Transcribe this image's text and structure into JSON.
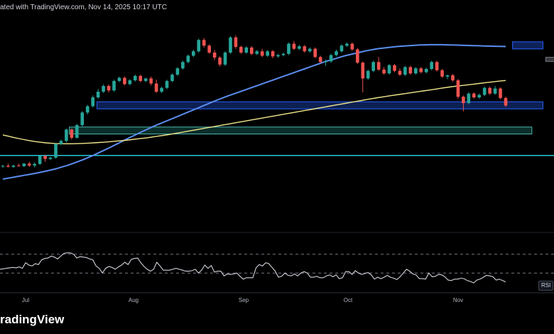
{
  "header": {
    "attribution": "ated with TradingView.com, Nov 14, 2025 10:17 UTC"
  },
  "footer": {
    "brand": "radingView"
  },
  "indicator": {
    "label": "RSI"
  },
  "colors": {
    "up": "#26a69a",
    "down": "#ef5350",
    "ma_fast": "#5b8def",
    "ma_slow": "#f0e68c",
    "rsi": "#d1d4dc",
    "support_line": "#26c6da"
  },
  "chart_data": {
    "type": "candlestick",
    "title": "",
    "xlabel": "",
    "ylabel": "",
    "x_ticks": [
      "Jul",
      "Aug",
      "Sep",
      "Oct",
      "Nov"
    ],
    "price_range": [
      0,
      100
    ],
    "candles": [
      {
        "o": 17,
        "h": 18,
        "l": 16,
        "c": 17.4
      },
      {
        "o": 17.4,
        "h": 18.8,
        "l": 16.4,
        "c": 16.8
      },
      {
        "o": 16.8,
        "h": 18,
        "l": 16,
        "c": 17.6
      },
      {
        "o": 17.6,
        "h": 18.8,
        "l": 17,
        "c": 17.2
      },
      {
        "o": 17.2,
        "h": 19.2,
        "l": 16.6,
        "c": 18.8
      },
      {
        "o": 18.8,
        "h": 20,
        "l": 16.8,
        "c": 17.6
      },
      {
        "o": 17.6,
        "h": 19.6,
        "l": 16.4,
        "c": 18.6
      },
      {
        "o": 18.6,
        "h": 24,
        "l": 18,
        "c": 23.6
      },
      {
        "o": 23.6,
        "h": 24.4,
        "l": 20,
        "c": 21.8
      },
      {
        "o": 21.8,
        "h": 23,
        "l": 21,
        "c": 22.6
      },
      {
        "o": 22.6,
        "h": 32,
        "l": 22,
        "c": 31.2
      },
      {
        "o": 31.2,
        "h": 34,
        "l": 30.4,
        "c": 33.2
      },
      {
        "o": 33.2,
        "h": 41,
        "l": 32.4,
        "c": 40.4
      },
      {
        "o": 40.4,
        "h": 41,
        "l": 34,
        "c": 35.2
      },
      {
        "o": 35.2,
        "h": 44,
        "l": 34.6,
        "c": 43.2
      },
      {
        "o": 43.2,
        "h": 52,
        "l": 42.4,
        "c": 51.2
      },
      {
        "o": 51.2,
        "h": 56,
        "l": 50,
        "c": 55.2
      },
      {
        "o": 55.2,
        "h": 62,
        "l": 54.4,
        "c": 60.8
      },
      {
        "o": 60.8,
        "h": 66,
        "l": 60,
        "c": 64.4
      },
      {
        "o": 64.4,
        "h": 69,
        "l": 63.6,
        "c": 68
      },
      {
        "o": 68,
        "h": 69,
        "l": 64,
        "c": 65.2
      },
      {
        "o": 65.2,
        "h": 72,
        "l": 64.4,
        "c": 71.2
      },
      {
        "o": 71.2,
        "h": 74,
        "l": 70.4,
        "c": 73.2
      },
      {
        "o": 73.2,
        "h": 74,
        "l": 68.4,
        "c": 69.2
      },
      {
        "o": 69.2,
        "h": 72.4,
        "l": 68.4,
        "c": 71.6
      },
      {
        "o": 71.6,
        "h": 75.2,
        "l": 70.8,
        "c": 74.4
      },
      {
        "o": 74.4,
        "h": 75.2,
        "l": 70.4,
        "c": 71.2
      },
      {
        "o": 71.2,
        "h": 73.2,
        "l": 70.4,
        "c": 72.8
      },
      {
        "o": 72.8,
        "h": 74,
        "l": 68.4,
        "c": 69.6
      },
      {
        "o": 69.6,
        "h": 72,
        "l": 63.6,
        "c": 64.4
      },
      {
        "o": 64.4,
        "h": 67.6,
        "l": 63.6,
        "c": 66.8
      },
      {
        "o": 66.8,
        "h": 72,
        "l": 66,
        "c": 71.2
      },
      {
        "o": 71.2,
        "h": 76,
        "l": 70.4,
        "c": 75.2
      },
      {
        "o": 75.2,
        "h": 80,
        "l": 74.4,
        "c": 79.2
      },
      {
        "o": 79.2,
        "h": 84,
        "l": 78.4,
        "c": 83.2
      },
      {
        "o": 83.2,
        "h": 88,
        "l": 82.4,
        "c": 87.2
      },
      {
        "o": 87.2,
        "h": 91,
        "l": 86.4,
        "c": 90
      },
      {
        "o": 90,
        "h": 98,
        "l": 89.2,
        "c": 97.2
      },
      {
        "o": 97.2,
        "h": 98.4,
        "l": 92.4,
        "c": 93.6
      },
      {
        "o": 93.6,
        "h": 94.4,
        "l": 88.4,
        "c": 89.2
      },
      {
        "o": 89.2,
        "h": 90.8,
        "l": 84.4,
        "c": 86
      },
      {
        "o": 86,
        "h": 86.8,
        "l": 80.4,
        "c": 81.6
      },
      {
        "o": 81.6,
        "h": 90,
        "l": 80.8,
        "c": 89.2
      },
      {
        "o": 89.2,
        "h": 99.6,
        "l": 88.4,
        "c": 98.8
      },
      {
        "o": 98.8,
        "h": 100,
        "l": 91.6,
        "c": 92.8
      },
      {
        "o": 92.8,
        "h": 93.6,
        "l": 88.4,
        "c": 89.2
      },
      {
        "o": 89.2,
        "h": 93.2,
        "l": 88.4,
        "c": 92.4
      },
      {
        "o": 92.4,
        "h": 93.2,
        "l": 87.6,
        "c": 88.4
      },
      {
        "o": 88.4,
        "h": 90.8,
        "l": 87.6,
        "c": 90
      },
      {
        "o": 90,
        "h": 91.6,
        "l": 86.4,
        "c": 87.2
      },
      {
        "o": 87.2,
        "h": 90.8,
        "l": 86.4,
        "c": 90
      },
      {
        "o": 90,
        "h": 90.8,
        "l": 85.6,
        "c": 86.8
      },
      {
        "o": 86.8,
        "h": 88.4,
        "l": 86,
        "c": 87.6
      },
      {
        "o": 87.6,
        "h": 89.2,
        "l": 86.8,
        "c": 88.4
      },
      {
        "o": 88.4,
        "h": 95.6,
        "l": 87.6,
        "c": 94.8
      },
      {
        "o": 94.8,
        "h": 96.4,
        "l": 90.8,
        "c": 91.6
      },
      {
        "o": 91.6,
        "h": 94,
        "l": 90.8,
        "c": 93.2
      },
      {
        "o": 93.2,
        "h": 94,
        "l": 89.2,
        "c": 90
      },
      {
        "o": 90,
        "h": 92.4,
        "l": 89.2,
        "c": 91.6
      },
      {
        "o": 91.6,
        "h": 92.4,
        "l": 85.6,
        "c": 86.4
      },
      {
        "o": 86.4,
        "h": 87.2,
        "l": 82.4,
        "c": 83.2
      },
      {
        "o": 83.2,
        "h": 84.8,
        "l": 80.8,
        "c": 83.6
      },
      {
        "o": 83.6,
        "h": 88.4,
        "l": 82.8,
        "c": 87.6
      },
      {
        "o": 87.6,
        "h": 91,
        "l": 86.8,
        "c": 90
      },
      {
        "o": 90,
        "h": 94.4,
        "l": 89.2,
        "c": 93.6
      },
      {
        "o": 93.6,
        "h": 95.6,
        "l": 92.8,
        "c": 94.8
      },
      {
        "o": 94.8,
        "h": 95.6,
        "l": 90.4,
        "c": 91.2
      },
      {
        "o": 91.2,
        "h": 92,
        "l": 82,
        "c": 82.8
      },
      {
        "o": 82.8,
        "h": 83.6,
        "l": 64,
        "c": 72.8
      },
      {
        "o": 72.8,
        "h": 78.4,
        "l": 72,
        "c": 77.6
      },
      {
        "o": 77.6,
        "h": 84,
        "l": 76.8,
        "c": 83.2
      },
      {
        "o": 83.2,
        "h": 86.4,
        "l": 77.6,
        "c": 78.4
      },
      {
        "o": 78.4,
        "h": 80,
        "l": 75.2,
        "c": 76
      },
      {
        "o": 76,
        "h": 82,
        "l": 75.2,
        "c": 81.2
      },
      {
        "o": 81.2,
        "h": 82,
        "l": 76.8,
        "c": 77.6
      },
      {
        "o": 77.6,
        "h": 79.2,
        "l": 74.4,
        "c": 75.2
      },
      {
        "o": 75.2,
        "h": 80.8,
        "l": 74.4,
        "c": 80
      },
      {
        "o": 80,
        "h": 80.8,
        "l": 75.2,
        "c": 76
      },
      {
        "o": 76,
        "h": 80,
        "l": 75.2,
        "c": 79.2
      },
      {
        "o": 79.2,
        "h": 80,
        "l": 76,
        "c": 76.8
      },
      {
        "o": 76.8,
        "h": 79.6,
        "l": 76,
        "c": 78.8
      },
      {
        "o": 78.8,
        "h": 84,
        "l": 78,
        "c": 83.2
      },
      {
        "o": 83.2,
        "h": 84,
        "l": 77.2,
        "c": 78
      },
      {
        "o": 78,
        "h": 78.8,
        "l": 73.2,
        "c": 74
      },
      {
        "o": 74,
        "h": 75.2,
        "l": 72.4,
        "c": 74.8
      },
      {
        "o": 74.8,
        "h": 75.6,
        "l": 70.8,
        "c": 71.6
      },
      {
        "o": 71.6,
        "h": 72.4,
        "l": 60,
        "c": 61.2
      },
      {
        "o": 61.2,
        "h": 62,
        "l": 52,
        "c": 57.2
      },
      {
        "o": 57.2,
        "h": 64,
        "l": 56.4,
        "c": 63.2
      },
      {
        "o": 63.2,
        "h": 64,
        "l": 60,
        "c": 60.8
      },
      {
        "o": 60.8,
        "h": 63.2,
        "l": 60,
        "c": 62.4
      },
      {
        "o": 62.4,
        "h": 67.6,
        "l": 61.6,
        "c": 66.8
      },
      {
        "o": 66.8,
        "h": 67.6,
        "l": 62.4,
        "c": 63.2
      },
      {
        "o": 63.2,
        "h": 68,
        "l": 62.4,
        "c": 66.4
      },
      {
        "o": 66.4,
        "h": 67.2,
        "l": 59.6,
        "c": 60.4
      },
      {
        "o": 60.4,
        "h": 61.2,
        "l": 54.8,
        "c": 55.6
      }
    ],
    "series": [
      {
        "values": [
          9,
          9.6,
          10.2,
          10.8,
          11.4,
          12,
          12.6,
          13.3,
          14,
          14.8,
          15.6,
          16.6,
          17.6,
          18.8,
          20,
          21.3,
          22.7,
          24.2,
          25.8,
          27.4,
          29,
          30.7,
          32.4,
          34.1,
          35.8,
          37.4,
          39,
          40.6,
          42.2,
          43.6,
          45,
          46.4,
          47.8,
          49.2,
          50.6,
          52,
          53.4,
          54.8,
          56.2,
          57.6,
          59,
          60.3,
          61.6,
          62.8,
          64,
          65.2,
          66.4,
          67.6,
          68.8,
          70,
          71.2,
          72.4,
          73.6,
          74.8,
          76,
          77.2,
          78.4,
          79.6,
          80.8,
          82,
          83.2,
          84.2,
          85.2,
          86.2,
          87.2,
          88,
          88.8,
          89.6,
          90.4,
          91,
          91.6,
          92,
          92.4,
          92.8,
          93.1,
          93.4,
          93.6,
          93.8,
          94,
          94.1,
          94.2,
          94.2,
          94.2,
          94.1,
          94,
          93.9,
          93.8,
          93.7,
          93.6,
          93.5,
          93.4,
          93.3,
          93.2,
          93.1,
          93
        ]
      },
      {
        "values": [
          37,
          36.2,
          35.4,
          34.7,
          34,
          33.4,
          32.8,
          32.4,
          32,
          31.7,
          31.5,
          31.4,
          31.4,
          31.4,
          31.5,
          31.6,
          31.8,
          32,
          32.2,
          32.4,
          32.7,
          33,
          33.3,
          33.6,
          34,
          34.4,
          34.8,
          35.2,
          35.7,
          36.2,
          36.7,
          37.2,
          37.8,
          38.4,
          39,
          39.6,
          40.2,
          40.8,
          41.4,
          42,
          42.6,
          43.2,
          43.8,
          44.4,
          45,
          45.6,
          46.2,
          46.8,
          47.4,
          48,
          48.6,
          49.2,
          49.8,
          50.4,
          51,
          51.6,
          52.2,
          52.8,
          53.4,
          54,
          54.6,
          55.2,
          55.8,
          56.4,
          57,
          57.6,
          58.2,
          58.8,
          59.4,
          60,
          60.6,
          61.1,
          61.6,
          62.1,
          62.6,
          63.1,
          63.6,
          64.1,
          64.6,
          65.1,
          65.6,
          66.1,
          66.6,
          67.1,
          67.6,
          68,
          68.4,
          68.8,
          69.2,
          69.6,
          70,
          70.4,
          70.8,
          71.2,
          71.5
        ]
      }
    ],
    "rsi_range": [
      0,
      100
    ],
    "rsi_levels": [
      70,
      30
    ],
    "rsi": [
      38,
      39,
      40,
      41,
      42,
      41,
      43,
      40,
      52,
      47,
      45,
      50,
      48,
      58,
      61,
      62,
      66,
      64,
      60,
      66,
      72,
      73,
      73,
      70,
      62,
      65,
      64,
      63,
      60,
      58,
      45,
      40,
      30,
      40,
      44,
      42,
      38,
      43,
      47,
      53,
      48,
      59,
      61,
      62,
      52,
      44,
      38,
      34,
      38,
      53,
      45,
      36,
      36,
      36,
      38,
      40,
      38,
      36,
      34,
      34,
      35,
      38,
      30,
      36,
      47,
      40,
      46,
      32,
      34,
      34,
      24,
      28,
      27,
      28,
      30,
      23,
      17,
      20,
      20,
      20,
      41,
      48,
      45,
      52,
      50,
      42,
      34,
      21,
      23,
      30,
      25,
      24,
      28,
      24,
      30,
      33,
      30,
      21,
      21,
      23,
      20,
      20,
      24,
      26,
      22,
      26,
      18,
      20,
      33,
      33,
      27,
      35,
      30,
      27,
      29,
      31,
      26,
      17,
      21,
      18,
      21,
      25,
      21,
      19,
      16,
      22,
      30,
      38,
      34,
      28,
      26,
      18,
      18,
      17,
      30,
      22,
      23,
      27,
      26,
      22,
      15,
      14,
      17,
      17,
      19,
      18,
      14,
      12,
      9,
      15,
      17,
      21,
      25,
      24,
      22,
      15,
      17,
      14,
      11
    ],
    "zones": [
      {
        "kind": "supply",
        "top": 96,
        "bottom": 91.5,
        "from": 92,
        "to": 98
      },
      {
        "kind": "neutral",
        "top": 86.2,
        "bottom": 83.6,
        "from": 98,
        "to": 101
      },
      {
        "kind": "resistance",
        "top": 72,
        "bottom": 68.4,
        "from": 117,
        "to": 143
      },
      {
        "kind": "demand",
        "top": 58,
        "bottom": 53.5,
        "from": 17,
        "to": 98
      },
      {
        "kind": "demand_lower",
        "top": 42,
        "bottom": 37.6,
        "from": 12,
        "to": 96
      }
    ],
    "support_level": 24,
    "legend": "none",
    "grid": false
  }
}
